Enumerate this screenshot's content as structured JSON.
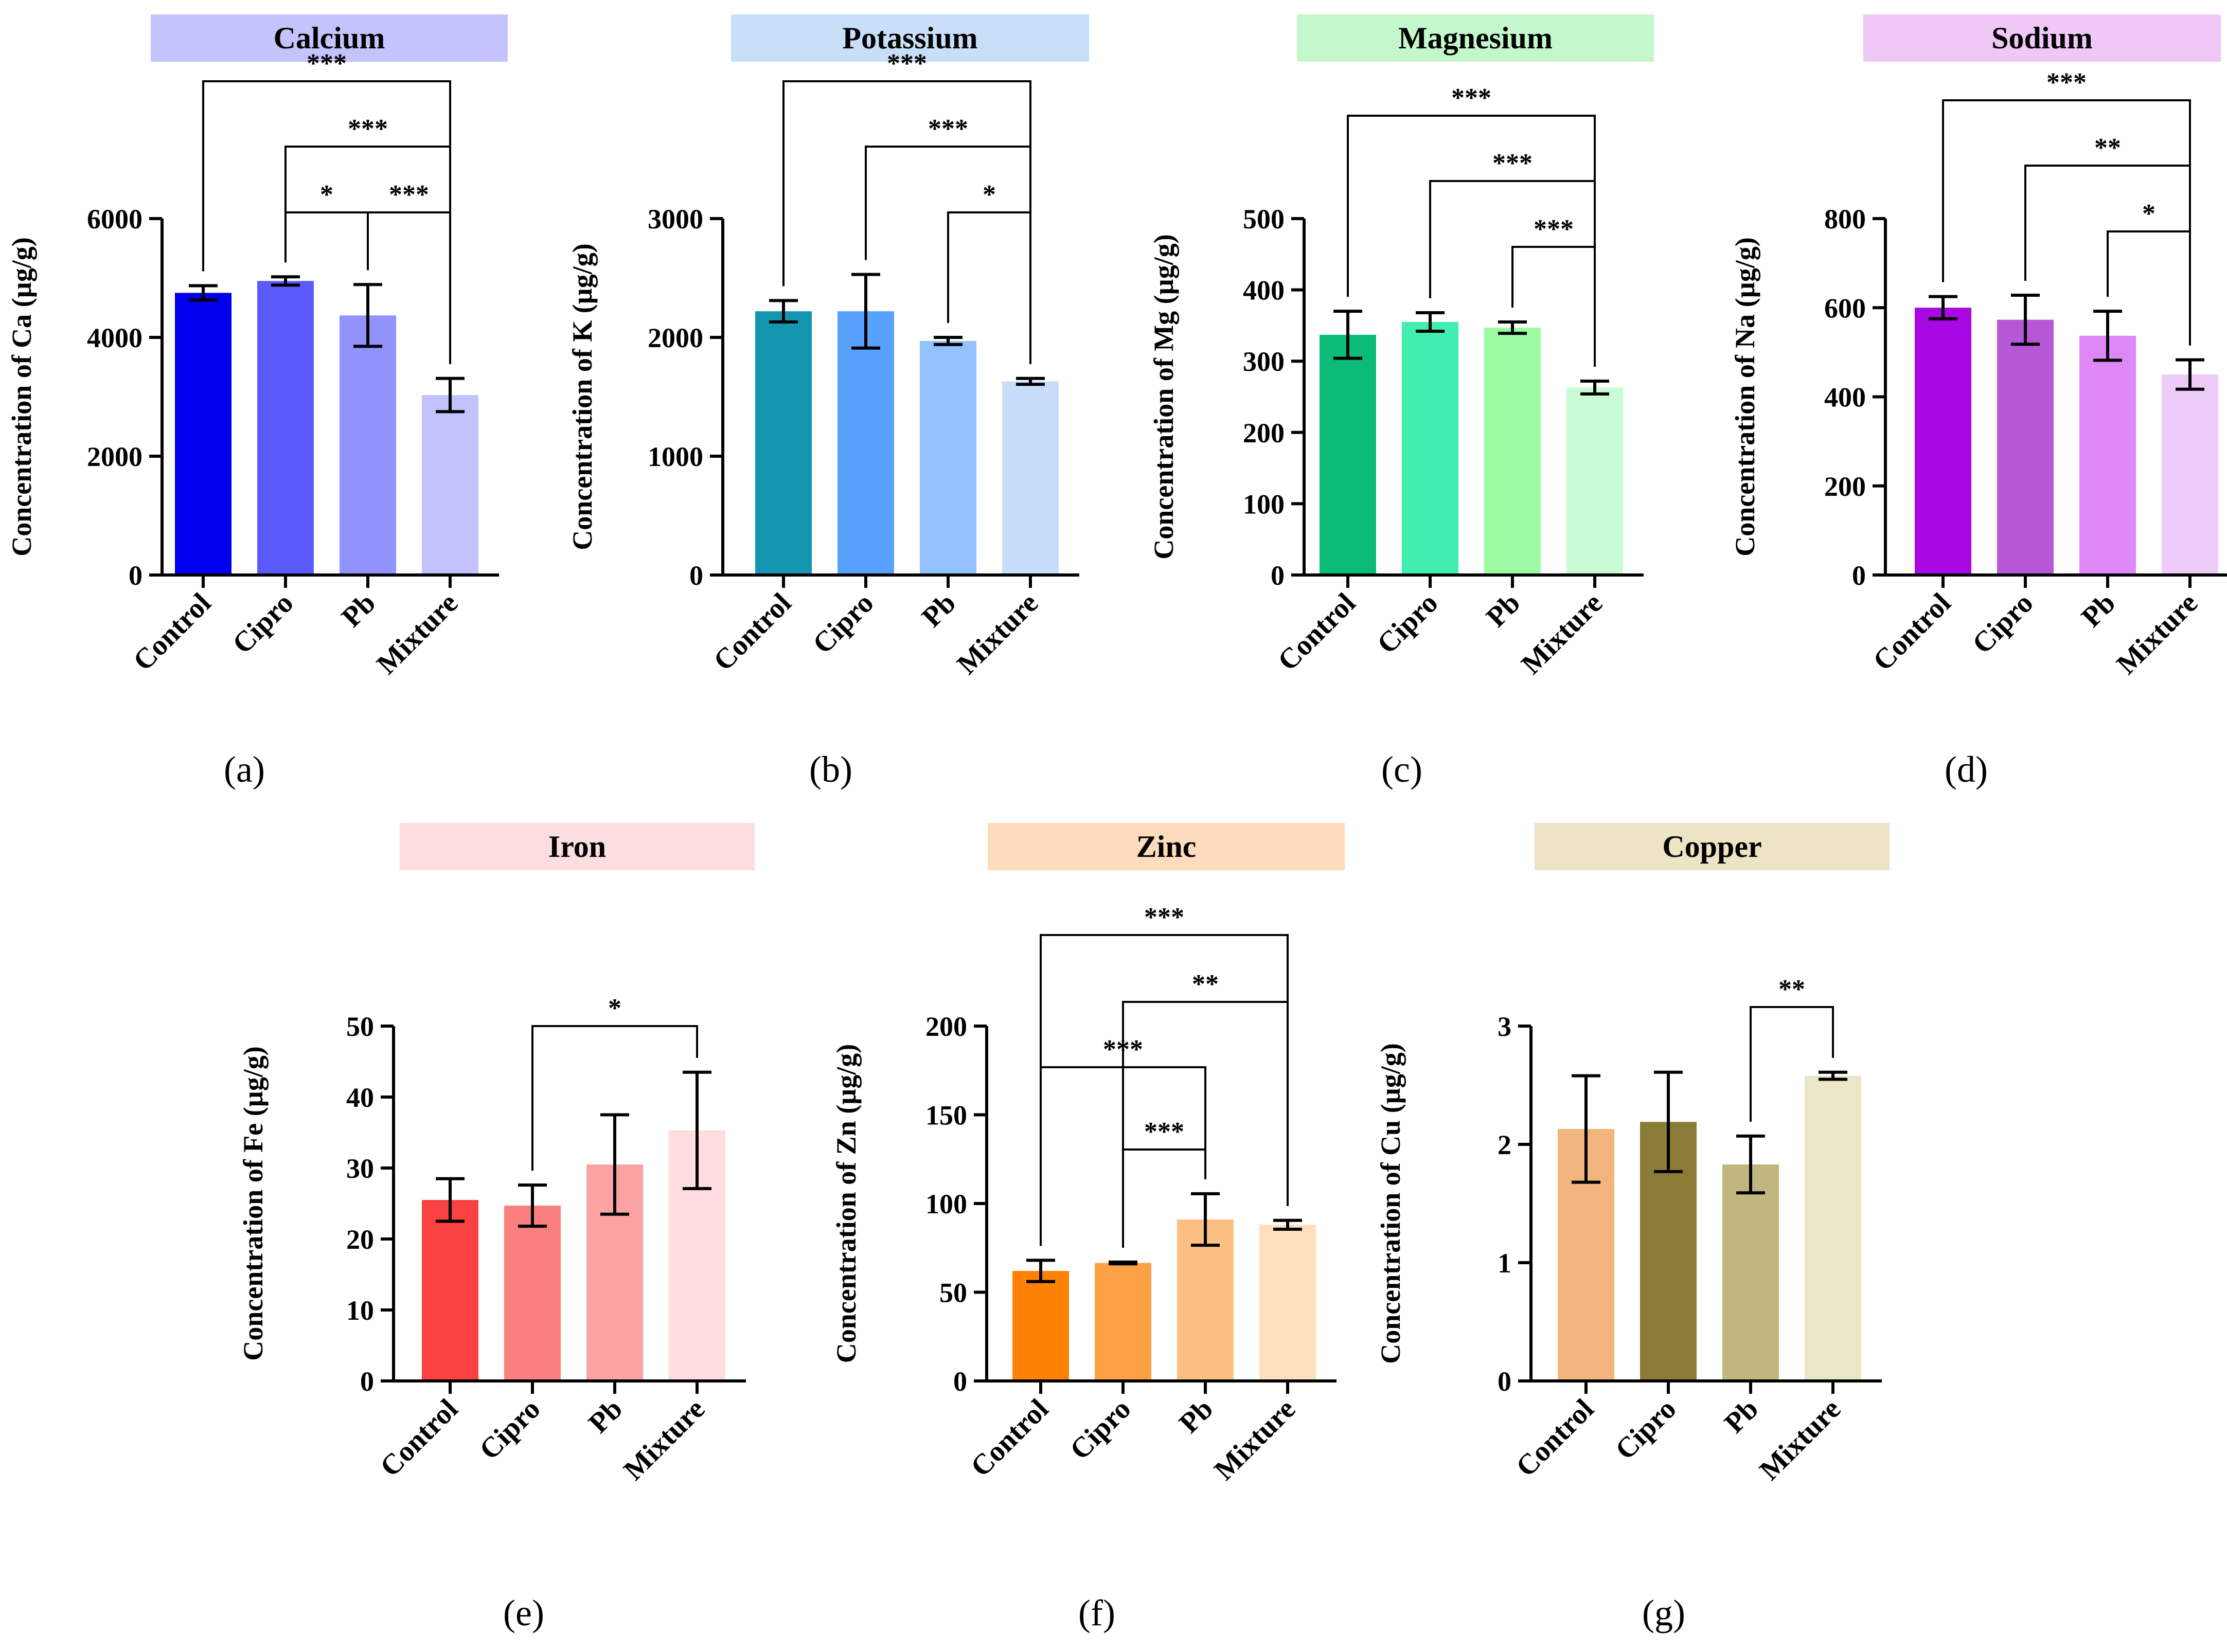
{
  "chart_data": [
    {
      "type": "bar",
      "panel": "(a)",
      "title": "Calcium",
      "title_color": "#c4c4fc",
      "xlabel": "",
      "ylabel": "Concentration of Ca (µg/g)",
      "categories": [
        "Control",
        "Cipro",
        "Pb",
        "Mixture"
      ],
      "values": [
        4750,
        4950,
        4370,
        3030
      ],
      "errors": [
        120,
        70,
        520,
        280
      ],
      "bar_colors": [
        "#0000f0",
        "#5b5bfb",
        "#9292fd",
        "#c2c2fe"
      ],
      "ylim": [
        0,
        6000
      ],
      "yticks": [
        "0",
        "2000",
        "4000",
        "6000"
      ],
      "ytick_values": [
        0,
        2000,
        4000,
        6000
      ],
      "brackets": [
        {
          "from": 0,
          "to": 3,
          "level": 1,
          "label": "***"
        },
        {
          "from": 1,
          "to": 3,
          "level": 2,
          "label": "***"
        },
        {
          "from": 1,
          "to": 2,
          "level": 3,
          "label": "*"
        },
        {
          "from": 2,
          "to": 3,
          "level": 3,
          "label": "***"
        }
      ]
    },
    {
      "type": "bar",
      "panel": "(b)",
      "title": "Potassium",
      "title_color": "#c9def8",
      "xlabel": "",
      "ylabel": "Concentration of K (µg/g)",
      "categories": [
        "Control",
        "Cipro",
        "Pb",
        "Mixture"
      ],
      "values": [
        2220,
        2220,
        1970,
        1630
      ],
      "errors": [
        90,
        310,
        30,
        25
      ],
      "bar_colors": [
        "#1496b0",
        "#57a0fb",
        "#92c1fb",
        "#c8ddf9"
      ],
      "ylim": [
        0,
        3000
      ],
      "yticks": [
        "0",
        "1000",
        "2000",
        "3000"
      ],
      "ytick_values": [
        0,
        1000,
        2000,
        3000
      ],
      "brackets": [
        {
          "from": 0,
          "to": 3,
          "level": 1,
          "label": "***"
        },
        {
          "from": 1,
          "to": 3,
          "level": 2,
          "label": "***"
        },
        {
          "from": 2,
          "to": 3,
          "level": 3,
          "label": "*"
        }
      ]
    },
    {
      "type": "bar",
      "panel": "(c)",
      "title": "Magnesium",
      "title_color": "#c4f8cc",
      "xlabel": "",
      "ylabel": "Concentration of Mg (µg/g)",
      "categories": [
        "Control",
        "Cipro",
        "Pb",
        "Mixture"
      ],
      "values": [
        337,
        355,
        347,
        263
      ],
      "errors": [
        33,
        13,
        8,
        9
      ],
      "bar_colors": [
        "#0abc78",
        "#41eeaf",
        "#9cfca3",
        "#c9fcd4"
      ],
      "ylim": [
        0,
        500
      ],
      "yticks": [
        "0",
        "100",
        "200",
        "300",
        "400",
        "500"
      ],
      "ytick_values": [
        0,
        100,
        200,
        300,
        400,
        500
      ],
      "brackets": [
        {
          "from": 0,
          "to": 3,
          "level": 1,
          "label": "***"
        },
        {
          "from": 1,
          "to": 3,
          "level": 2,
          "label": "***"
        },
        {
          "from": 2,
          "to": 3,
          "level": 3,
          "label": "***"
        }
      ]
    },
    {
      "type": "bar",
      "panel": "(d)",
      "title": "Sodium",
      "title_color": "#efc8f8",
      "xlabel": "",
      "ylabel": "Concentration of Na (µg/g)",
      "categories": [
        "Control",
        "Cipro",
        "Pb",
        "Mixture"
      ],
      "values": [
        600,
        573,
        537,
        450
      ],
      "errors": [
        25,
        55,
        55,
        33
      ],
      "bar_colors": [
        "#a809e2",
        "#b657d8",
        "#dd88f6",
        "#efcbf8"
      ],
      "ylim": [
        0,
        800
      ],
      "yticks": [
        "0",
        "200",
        "400",
        "600",
        "800"
      ],
      "ytick_values": [
        0,
        200,
        400,
        600,
        800
      ],
      "brackets": [
        {
          "from": 0,
          "to": 3,
          "level": 1,
          "label": "***"
        },
        {
          "from": 1,
          "to": 3,
          "level": 2,
          "label": "**"
        },
        {
          "from": 2,
          "to": 3,
          "level": 3,
          "label": "*"
        }
      ]
    },
    {
      "type": "bar",
      "panel": "(e)",
      "title": "Iron",
      "title_color": "#fcdde0",
      "xlabel": "",
      "ylabel": "Concentration of Fe (µg/g)",
      "categories": [
        "Control",
        "Cipro",
        "Pb",
        "Mixture"
      ],
      "values": [
        25.5,
        24.7,
        30.5,
        35.3
      ],
      "errors": [
        3,
        2.9,
        7,
        8.2
      ],
      "bar_colors": [
        "#f94141",
        "#fa7f7f",
        "#fba3a3",
        "#fddddf"
      ],
      "ylim": [
        0,
        50
      ],
      "yticks": [
        "0",
        "10",
        "20",
        "30",
        "40",
        "50"
      ],
      "ytick_values": [
        0,
        10,
        20,
        30,
        40,
        50
      ],
      "brackets": [
        {
          "from": 1,
          "to": 3,
          "level": 1,
          "label": "*"
        }
      ]
    },
    {
      "type": "bar",
      "panel": "(f)",
      "title": "Zinc",
      "title_color": "#fcdcbc",
      "xlabel": "",
      "ylabel": "Concentration of Zn (µg/g)",
      "categories": [
        "Control",
        "Cipro",
        "Pb",
        "Mixture"
      ],
      "values": [
        62,
        66.5,
        91,
        88
      ],
      "errors": [
        6,
        0.5,
        14.5,
        2.5
      ],
      "bar_colors": [
        "#fd8104",
        "#fca144",
        "#fdbf82",
        "#fddfbe"
      ],
      "ylim": [
        0,
        200
      ],
      "yticks": [
        "0",
        "50",
        "100",
        "150",
        "200"
      ],
      "ytick_values": [
        0,
        50,
        100,
        150,
        200
      ],
      "brackets": [
        {
          "from": 0,
          "to": 3,
          "level": 1,
          "label": "***"
        },
        {
          "from": 1,
          "to": 3,
          "level": 2,
          "label": "**"
        },
        {
          "from": 0,
          "to": 2,
          "level": 3,
          "label": "***"
        },
        {
          "from": 1,
          "to": 2,
          "level": 4,
          "label": "***"
        }
      ]
    },
    {
      "type": "bar",
      "panel": "(g)",
      "title": "Copper",
      "title_color": "#ece4c4",
      "xlabel": "",
      "ylabel": "Concentration of Cu (µg/g)",
      "categories": [
        "Control",
        "Cipro",
        "Pb",
        "Mixture"
      ],
      "values": [
        2.13,
        2.19,
        1.83,
        2.58
      ],
      "errors": [
        0.45,
        0.42,
        0.24,
        0.03
      ],
      "bar_colors": [
        "#f0b47c",
        "#8a7b36",
        "#c1b77e",
        "#ebe6c8"
      ],
      "ylim": [
        0,
        3
      ],
      "yticks": [
        "0",
        "1",
        "2",
        "3"
      ],
      "ytick_values": [
        0,
        1,
        2,
        3
      ],
      "brackets": [
        {
          "from": 2,
          "to": 3,
          "level": 1,
          "label": "**"
        }
      ]
    }
  ]
}
